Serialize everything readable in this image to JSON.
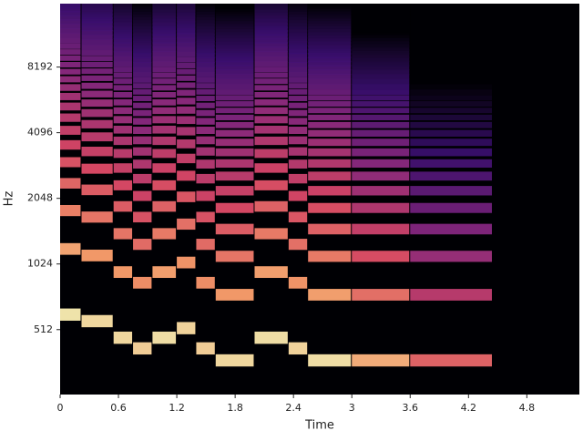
{
  "chart_data": {
    "type": "spectrogram",
    "xlabel": "Time",
    "ylabel": "Hz",
    "xlim": [
      0,
      5.34
    ],
    "ylim": [
      258,
      16000
    ],
    "yscale": "log",
    "xticks": [
      0,
      0.6,
      1.2,
      1.8,
      2.4,
      3,
      3.6,
      4.2,
      4.8
    ],
    "yticks": [
      512,
      1024,
      2048,
      4096,
      8192
    ],
    "background": "#000004",
    "colormap": [
      "#000004",
      "#3b0f70",
      "#8c2981",
      "#de4968",
      "#fe9f6d",
      "#fcfdbf"
    ],
    "clim": [
      -80,
      0
    ],
    "events": [
      {
        "start": 0.0,
        "end": 0.22,
        "f0": 600,
        "level": -2
      },
      {
        "start": 0.22,
        "end": 0.55,
        "f0": 560,
        "level": -4
      },
      {
        "start": 0.55,
        "end": 0.75,
        "f0": 470,
        "level": -4
      },
      {
        "start": 0.75,
        "end": 0.95,
        "f0": 420,
        "level": -6
      },
      {
        "start": 0.95,
        "end": 1.2,
        "f0": 470,
        "level": -3
      },
      {
        "start": 1.2,
        "end": 1.4,
        "f0": 520,
        "level": -5
      },
      {
        "start": 1.4,
        "end": 1.6,
        "f0": 420,
        "level": -6
      },
      {
        "start": 1.6,
        "end": 2.0,
        "f0": 370,
        "level": -4
      },
      {
        "start": 2.0,
        "end": 2.35,
        "f0": 470,
        "level": -3
      },
      {
        "start": 2.35,
        "end": 2.55,
        "f0": 420,
        "level": -5
      },
      {
        "start": 2.55,
        "end": 3.0,
        "f0": 370,
        "level": -3
      },
      {
        "start": 3.0,
        "end": 3.6,
        "f0": 370,
        "level": -12
      },
      {
        "start": 3.6,
        "end": 4.45,
        "f0": 370,
        "level": -26
      }
    ]
  }
}
